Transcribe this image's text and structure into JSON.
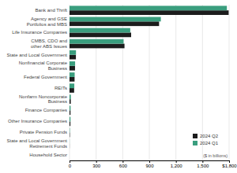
{
  "chart_data": {
    "type": "bar",
    "orientation": "horizontal",
    "categories": [
      "Household Sector",
      "State and Local Government\nRetirement Funds",
      "Private Pension Funds",
      "Other Insurance Companies",
      "Finance Companies",
      "Nonfarm Noncorporate\nBusiness",
      "REITs",
      "Federal Government",
      "Nonfinancial Corporate\nBusiness",
      "State and Local Government",
      "CMBS, CDO and\nother ABS Issues",
      "Life Insurance Companies",
      "Agency and GSE\nPortfolios and MBS",
      "Bank and Thrift"
    ],
    "series": [
      {
        "name": "2024 Q2",
        "color": "#1c1c1c",
        "values": [
          0,
          1,
          4,
          10,
          11,
          14,
          52,
          57,
          62,
          72,
          620,
          695,
          1010,
          1795
        ]
      },
      {
        "name": "2024 Q1",
        "color": "#3a9e7e",
        "values": [
          0,
          1,
          4,
          11,
          12,
          15,
          54,
          58,
          63,
          73,
          610,
          685,
          1030,
          1775
        ]
      }
    ],
    "xlim": [
      0,
      1800
    ],
    "xticks": [
      0,
      300,
      600,
      900,
      {
        "value": 1200,
        "label": "1,200"
      },
      {
        "value": 1500,
        "label": "1,500"
      },
      {
        "value": 1800,
        "label": "$1,800"
      }
    ],
    "grid": true,
    "legend": "lower right",
    "annotations": [
      "($ in billions)"
    ]
  }
}
